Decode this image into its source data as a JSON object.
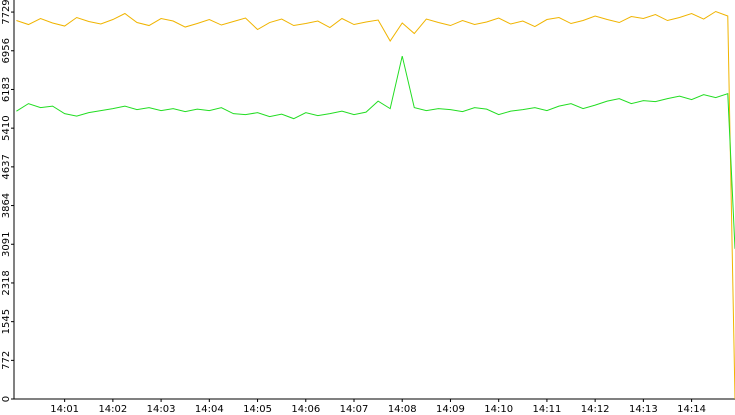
{
  "chart_data": {
    "type": "line",
    "x": [
      0,
      0.25,
      0.5,
      0.75,
      1,
      1.25,
      1.5,
      1.75,
      2,
      2.25,
      2.5,
      2.75,
      3,
      3.25,
      3.5,
      3.75,
      4,
      4.25,
      4.5,
      4.75,
      5,
      5.25,
      5.5,
      5.75,
      6,
      6.25,
      6.5,
      6.75,
      7,
      7.25,
      7.5,
      7.75,
      8,
      8.25,
      8.5,
      8.75,
      9,
      9.25,
      9.5,
      9.75,
      10,
      10.25,
      10.5,
      10.75,
      11,
      11.25,
      11.5,
      11.75,
      12,
      12.25,
      12.5,
      12.75,
      13,
      13.25,
      13.5,
      13.75,
      14,
      14.25,
      14.5,
      14.75,
      14.9
    ],
    "series": [
      {
        "color": "#f0b400",
        "values": [
          7560,
          7480,
          7600,
          7510,
          7450,
          7620,
          7540,
          7490,
          7580,
          7700,
          7520,
          7460,
          7600,
          7550,
          7430,
          7500,
          7580,
          7470,
          7540,
          7610,
          7380,
          7520,
          7590,
          7460,
          7500,
          7550,
          7420,
          7600,
          7480,
          7530,
          7570,
          7150,
          7510,
          7300,
          7590,
          7520,
          7460,
          7560,
          7480,
          7530,
          7610,
          7490,
          7550,
          7440,
          7580,
          7620,
          7500,
          7560,
          7650,
          7580,
          7520,
          7640,
          7600,
          7680,
          7560,
          7620,
          7700,
          7590,
          7740,
          7650,
          0
        ]
      },
      {
        "color": "#22dd22",
        "values": [
          5750,
          5900,
          5820,
          5850,
          5700,
          5650,
          5720,
          5760,
          5800,
          5850,
          5780,
          5820,
          5760,
          5800,
          5740,
          5790,
          5760,
          5820,
          5700,
          5680,
          5720,
          5640,
          5690,
          5600,
          5720,
          5660,
          5700,
          5750,
          5680,
          5730,
          5950,
          5800,
          6850,
          5820,
          5760,
          5800,
          5780,
          5740,
          5820,
          5790,
          5680,
          5750,
          5780,
          5820,
          5760,
          5850,
          5900,
          5800,
          5870,
          5950,
          6000,
          5900,
          5960,
          5940,
          6000,
          6050,
          5980,
          6080,
          6020,
          6100,
          3000
        ]
      }
    ],
    "xlim": [
      -0.05,
      14.9
    ],
    "xticks": [
      {
        "value": 1,
        "label": "14:01"
      },
      {
        "value": 2,
        "label": "14:02"
      },
      {
        "value": 3,
        "label": "14:03"
      },
      {
        "value": 4,
        "label": "14:04"
      },
      {
        "value": 5,
        "label": "14:05"
      },
      {
        "value": 6,
        "label": "14:06"
      },
      {
        "value": 7,
        "label": "14:07"
      },
      {
        "value": 8,
        "label": "14:08"
      },
      {
        "value": 9,
        "label": "14:09"
      },
      {
        "value": 10,
        "label": "14:10"
      },
      {
        "value": 11,
        "label": "14:11"
      },
      {
        "value": 12,
        "label": "14:12"
      },
      {
        "value": 13,
        "label": "14:13"
      },
      {
        "value": 14,
        "label": "14:14"
      }
    ],
    "ylim": [
      0,
      7970
    ],
    "yticks": [
      0,
      772,
      1545,
      2318,
      3091,
      3864,
      4637,
      5410,
      6183,
      6956,
      7729
    ]
  }
}
